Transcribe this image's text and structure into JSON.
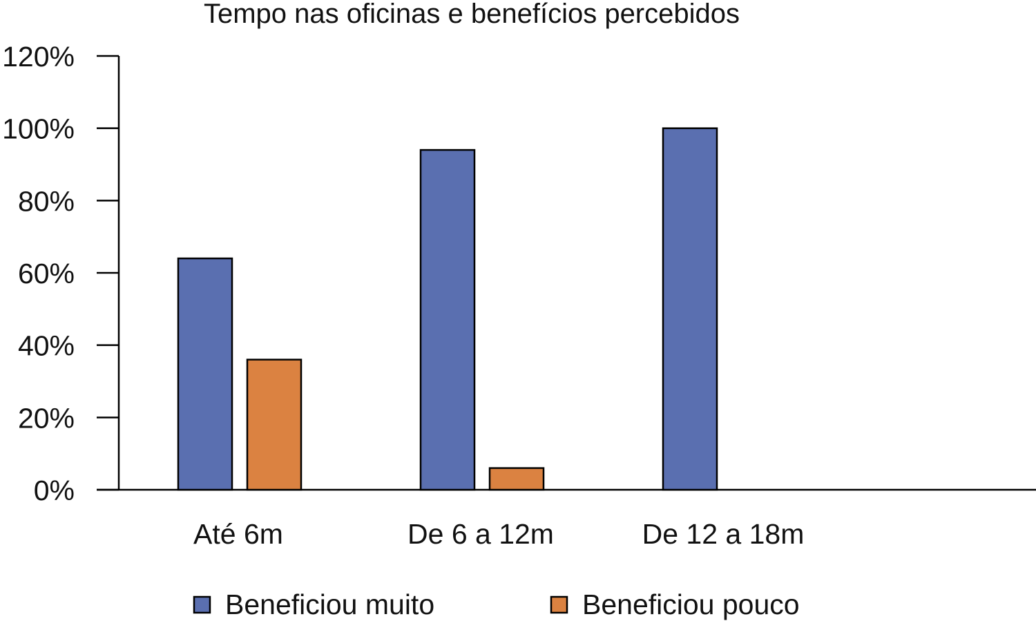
{
  "chart_data": {
    "type": "bar",
    "title": "Tempo nas oficinas e benefícios percebidos",
    "xlabel": "",
    "ylabel": "",
    "categories": [
      "Até 6m",
      "De 6 a 12m",
      "De 12 a 18m"
    ],
    "series": [
      {
        "name": "Beneficiou muito",
        "color": "#5A6FB0",
        "values": [
          64,
          94,
          100
        ]
      },
      {
        "name": "Beneficiou pouco",
        "color": "#DB8241",
        "values": [
          36,
          6,
          0
        ]
      }
    ],
    "y_ticks": [
      "0%",
      "20%",
      "40%",
      "60%",
      "80%",
      "100%",
      "120%"
    ],
    "y_tick_values": [
      0,
      20,
      40,
      60,
      80,
      100,
      120
    ],
    "ylim": [
      0,
      120
    ],
    "grid": false,
    "legend_position": "bottom"
  }
}
